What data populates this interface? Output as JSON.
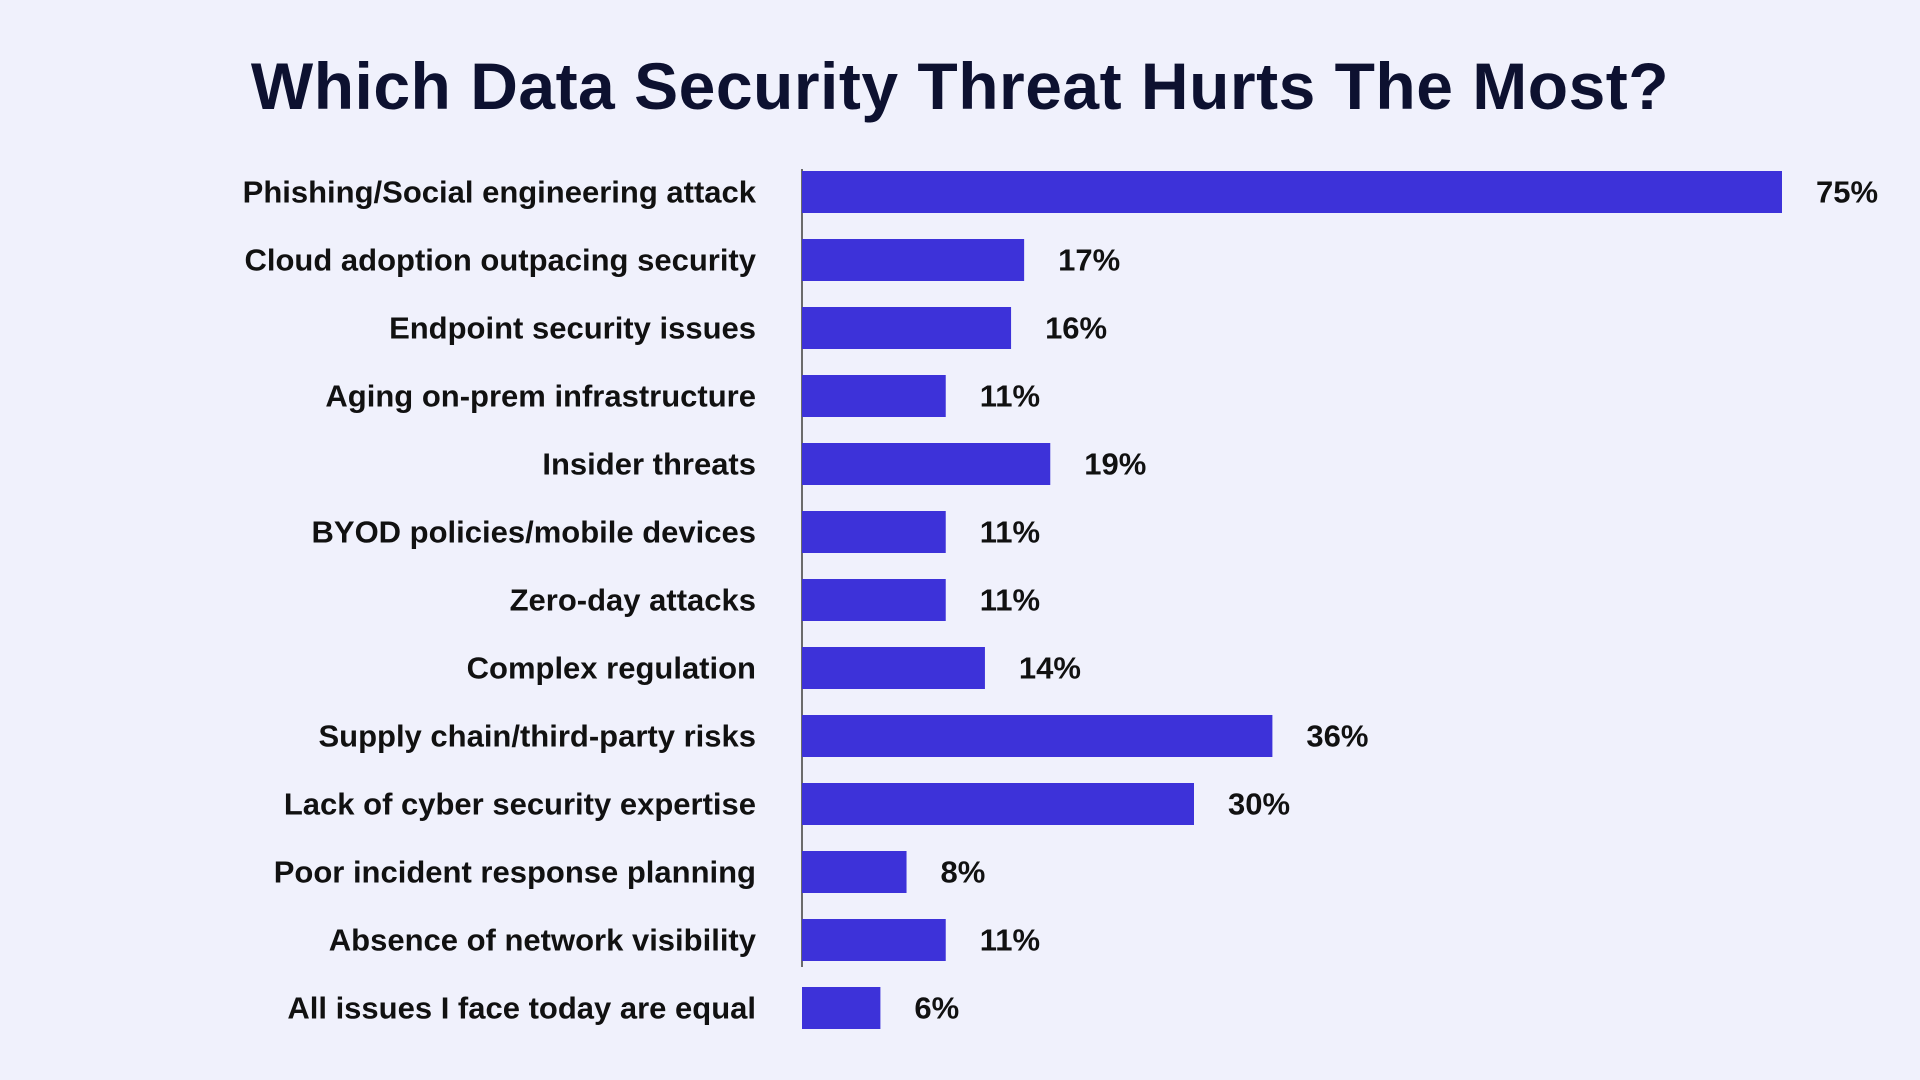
{
  "colors": {
    "background": "#f0f1fc",
    "bar": "#3d32d9",
    "title": "#0d1130",
    "text": "#111111",
    "axis": "#6b6b6b"
  },
  "chart_data": {
    "type": "bar",
    "orientation": "horizontal",
    "title": "Which Data Security Threat Hurts The Most?",
    "xlabel": "",
    "ylabel": "",
    "xlim": [
      0,
      75
    ],
    "grid": false,
    "categories": [
      "Phishing/Social engineering attack",
      "Cloud adoption outpacing security",
      "Endpoint security issues",
      "Aging on-prem infrastructure",
      "Insider threats",
      "BYOD policies/mobile devices",
      "Zero-day attacks",
      "Complex regulation",
      "Supply chain/third-party risks",
      "Lack of cyber security expertise",
      "Poor incident response planning",
      "Absence of network visibility",
      "All issues I face today are equal"
    ],
    "values": [
      75,
      17,
      16,
      11,
      19,
      11,
      11,
      14,
      36,
      30,
      8,
      11,
      6
    ],
    "value_labels": [
      "75%",
      "17%",
      "16%",
      "11%",
      "19%",
      "11%",
      "11%",
      "14%",
      "36%",
      "30%",
      "8%",
      "11%",
      "6%"
    ]
  }
}
